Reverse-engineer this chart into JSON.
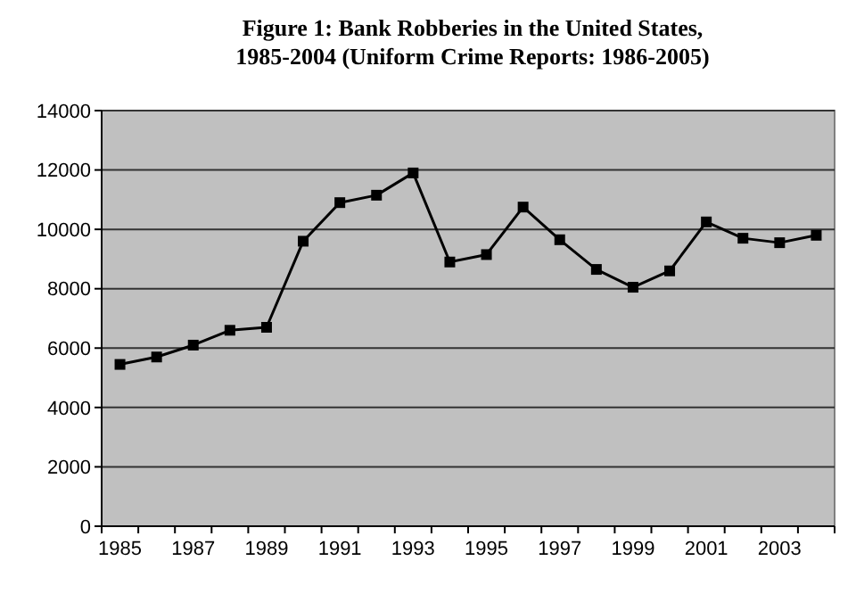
{
  "chart_data": {
    "type": "line",
    "title": "Figure 1: Bank Robberies in the United States,\n1985-2004 (Uniform Crime Reports: 1986-2005)",
    "categories": [
      "1985",
      null,
      "1987",
      null,
      "1989",
      null,
      "1991",
      null,
      "1993",
      null,
      "1995",
      null,
      "1997",
      null,
      "1999",
      null,
      "2001",
      null,
      "2003",
      null
    ],
    "series": [
      {
        "color": "#000000",
        "values": [
          5450,
          5700,
          6100,
          6600,
          6700,
          9600,
          10900,
          11150,
          11900,
          8900,
          9150,
          10750,
          9650,
          8650,
          8050,
          8600,
          10250,
          9700,
          9550,
          9800
        ]
      }
    ],
    "ylim": [
      0,
      14000
    ],
    "yticks": [
      0,
      2000,
      4000,
      6000,
      8000,
      10000,
      12000,
      14000
    ],
    "grid": "y",
    "marker": "square",
    "line_style": "solid"
  }
}
